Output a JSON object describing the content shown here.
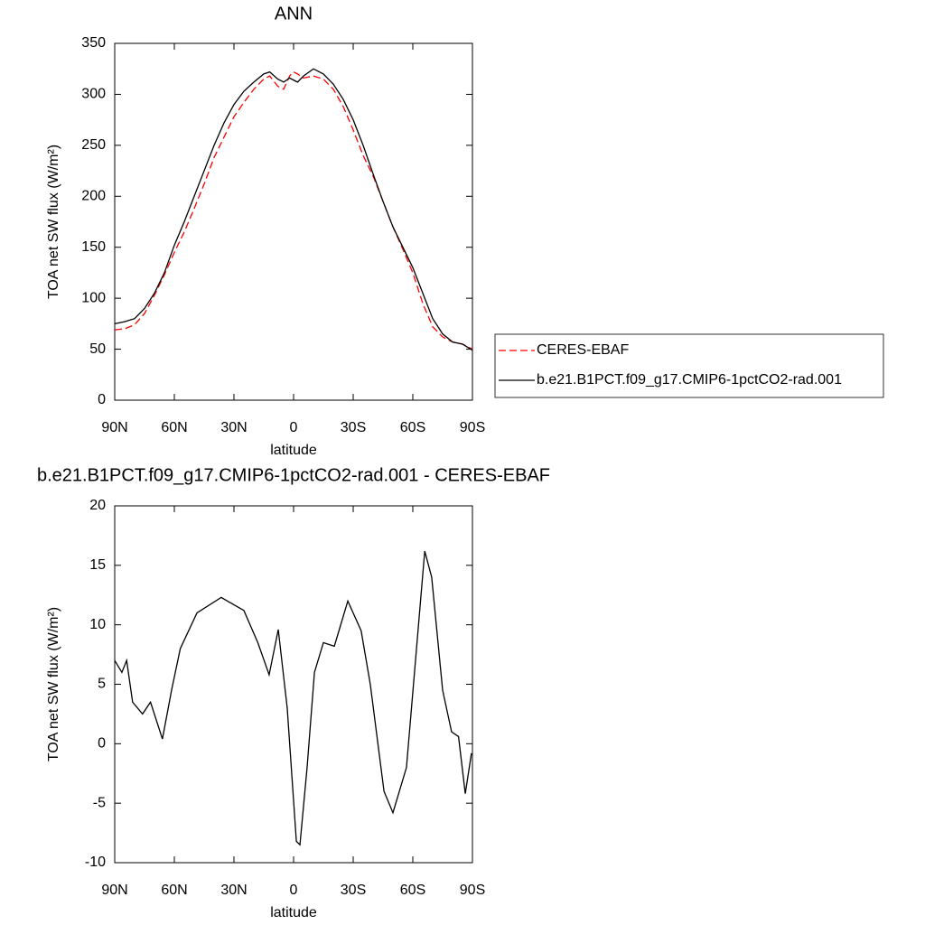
{
  "chart_data": [
    {
      "type": "line",
      "title": "ANN",
      "x_label": "latitude",
      "y_label": "TOA net SW flux (W/m²)",
      "x": [
        90,
        85,
        80,
        75,
        70,
        65,
        60,
        55,
        50,
        45,
        40,
        35,
        30,
        25,
        20,
        15,
        12,
        8,
        5,
        2,
        0,
        -2,
        -5,
        -10,
        -15,
        -20,
        -25,
        -30,
        -35,
        -40,
        -45,
        -50,
        -55,
        -60,
        -65,
        -70,
        -75,
        -80,
        -85,
        -90
      ],
      "series": [
        {
          "name": "CERES-EBAF",
          "color": "#ff0000",
          "dashed": true,
          "values": [
            69,
            70,
            74,
            85,
            103,
            123,
            145,
            165,
            188,
            212,
            238,
            258,
            278,
            292,
            305,
            315,
            318,
            308,
            305,
            318,
            322,
            320,
            316,
            318,
            315,
            305,
            288,
            265,
            240,
            220,
            195,
            170,
            148,
            125,
            95,
            72,
            62,
            57,
            55,
            50
          ]
        },
        {
          "name": "b.e21.B1PCT.f09_g17.CMIP6-1pctCO2-rad.001",
          "color": "#000000",
          "dashed": false,
          "values": [
            75,
            77,
            80,
            90,
            105,
            125,
            152,
            175,
            200,
            225,
            250,
            272,
            290,
            303,
            312,
            320,
            322,
            315,
            312,
            316,
            314,
            312,
            318,
            325,
            320,
            310,
            295,
            275,
            250,
            222,
            195,
            170,
            150,
            130,
            105,
            80,
            65,
            57,
            55,
            49
          ]
        }
      ],
      "xlim": [
        90,
        -90
      ],
      "xticks": [
        {
          "value": 90,
          "label": "90N"
        },
        {
          "value": 60,
          "label": "60N"
        },
        {
          "value": 30,
          "label": "30N"
        },
        0,
        {
          "value": -30,
          "label": "30S"
        },
        {
          "value": -60,
          "label": "60S"
        },
        {
          "value": -90,
          "label": "90S"
        }
      ],
      "ylim": [
        0,
        350
      ],
      "yticks": [
        0,
        50,
        100,
        150,
        200,
        250,
        300,
        350
      ],
      "legend": "right"
    },
    {
      "type": "line",
      "title": "b.e21.B1PCT.f09_g17.CMIP6-1pctCO2-rad.001 - CERES-EBAF",
      "x_label": "latitude",
      "y_label": "TOA net SW flux (W/m²)",
      "x": [
        90,
        86.4,
        84,
        81,
        76,
        72,
        66,
        61.4,
        57,
        48.6,
        36.4,
        25,
        18,
        12.3,
        7.7,
        3.2,
        -1.4,
        -3.2,
        -6.8,
        -10.5,
        -15,
        -20.5,
        -27.3,
        -34,
        -38.6,
        -45.5,
        -50,
        -56.8,
        -66,
        -69.5,
        -75,
        -79.5,
        -83,
        -86.4,
        -89.5
      ],
      "values": [
        7,
        6,
        7,
        3.5,
        2.5,
        3.5,
        0.4,
        4.5,
        8,
        11,
        12.3,
        11.2,
        8.5,
        5.8,
        9.6,
        3,
        -8.2,
        -8.5,
        -2,
        6,
        8.5,
        8.2,
        12,
        9.5,
        5,
        -4,
        -5.8,
        -2,
        16.2,
        14,
        4.5,
        1,
        0.6,
        -4.2,
        -0.8
      ],
      "color": "#000000",
      "xlim": [
        90,
        -90
      ],
      "xticks": [
        {
          "value": 90,
          "label": "90N"
        },
        {
          "value": 60,
          "label": "60N"
        },
        {
          "value": 30,
          "label": "30N"
        },
        0,
        {
          "value": -30,
          "label": "30S"
        },
        {
          "value": -60,
          "label": "60S"
        },
        {
          "value": -90,
          "label": "90S"
        }
      ],
      "ylim": [
        -10,
        20
      ],
      "yticks": [
        -10,
        -5,
        0,
        5,
        10,
        15,
        20
      ]
    }
  ]
}
